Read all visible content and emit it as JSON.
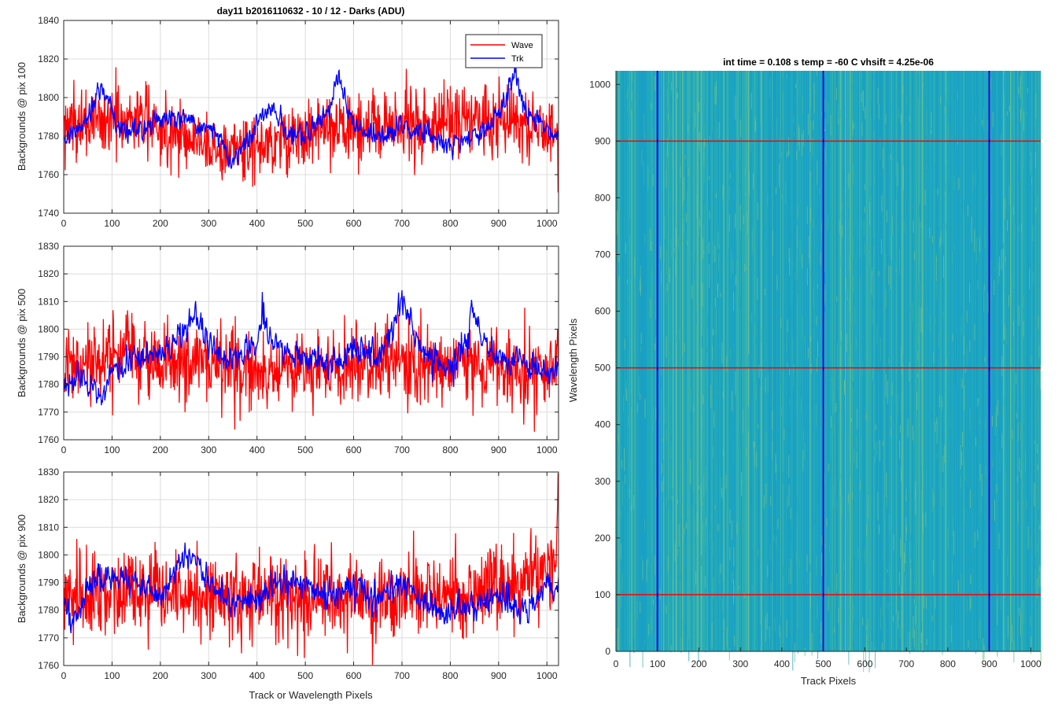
{
  "chart_data": [
    {
      "type": "line",
      "title": "day11 b2016110632 - 10 / 12 - Darks (ADU)",
      "xlabel": "",
      "ylabel": "Backgrounds @ pix 100",
      "xlim": [
        0,
        1024
      ],
      "ylim": [
        1740,
        1840
      ],
      "xticks": [
        0,
        100,
        200,
        300,
        400,
        500,
        600,
        700,
        800,
        900,
        1000
      ],
      "yticks": [
        1740,
        1760,
        1780,
        1800,
        1820,
        1840
      ],
      "grid": true,
      "legend": "top-right",
      "x_range": [
        1,
        1024
      ],
      "series": [
        {
          "name": "Wave",
          "color": "#ff0000",
          "mean": 1785,
          "noise": 9,
          "anchors": [
            [
              1,
              1785
            ],
            [
              150,
              1790
            ],
            [
              330,
              1772
            ],
            [
              520,
              1782
            ],
            [
              700,
              1786
            ],
            [
              920,
              1790
            ],
            [
              1024,
              1780
            ]
          ]
        },
        {
          "name": "Trk",
          "color": "#0000ff",
          "mean": 1783,
          "noise": 4,
          "anchors": [
            [
              1,
              1778
            ],
            [
              25,
              1782
            ],
            [
              55,
              1790
            ],
            [
              75,
              1805
            ],
            [
              90,
              1800
            ],
            [
              110,
              1785
            ],
            [
              150,
              1782
            ],
            [
              200,
              1790
            ],
            [
              260,
              1788
            ],
            [
              300,
              1785
            ],
            [
              330,
              1775
            ],
            [
              350,
              1766
            ],
            [
              390,
              1782
            ],
            [
              430,
              1795
            ],
            [
              460,
              1783
            ],
            [
              500,
              1780
            ],
            [
              550,
              1795
            ],
            [
              565,
              1812
            ],
            [
              575,
              1805
            ],
            [
              600,
              1785
            ],
            [
              650,
              1778
            ],
            [
              700,
              1785
            ],
            [
              750,
              1782
            ],
            [
              800,
              1775
            ],
            [
              850,
              1780
            ],
            [
              900,
              1790
            ],
            [
              925,
              1808
            ],
            [
              935,
              1815
            ],
            [
              950,
              1795
            ],
            [
              1000,
              1782
            ],
            [
              1024,
              1780
            ]
          ]
        }
      ]
    },
    {
      "type": "line",
      "title": "",
      "xlabel": "",
      "ylabel": "Backgrounds @ pix 500",
      "xlim": [
        0,
        1024
      ],
      "ylim": [
        1760,
        1830
      ],
      "xticks": [
        0,
        100,
        200,
        300,
        400,
        500,
        600,
        700,
        800,
        900,
        1000
      ],
      "yticks": [
        1760,
        1770,
        1780,
        1790,
        1800,
        1810,
        1820,
        1830
      ],
      "grid": true,
      "x_range": [
        1,
        1024
      ],
      "series": [
        {
          "name": "Wave",
          "color": "#ff0000",
          "mean": 1787,
          "noise": 7,
          "anchors": [
            [
              1,
              1785
            ],
            [
              150,
              1790
            ],
            [
              300,
              1786
            ],
            [
              500,
              1786
            ],
            [
              700,
              1788
            ],
            [
              900,
              1785
            ],
            [
              1024,
              1785
            ]
          ]
        },
        {
          "name": "Trk",
          "color": "#0000ff",
          "mean": 1788,
          "noise": 3.5,
          "anchors": [
            [
              1,
              1782
            ],
            [
              40,
              1782
            ],
            [
              75,
              1775
            ],
            [
              100,
              1785
            ],
            [
              150,
              1790
            ],
            [
              200,
              1790
            ],
            [
              250,
              1800
            ],
            [
              270,
              1805
            ],
            [
              300,
              1795
            ],
            [
              350,
              1788
            ],
            [
              400,
              1795
            ],
            [
              410,
              1807
            ],
            [
              430,
              1795
            ],
            [
              480,
              1790
            ],
            [
              550,
              1788
            ],
            [
              600,
              1792
            ],
            [
              650,
              1790
            ],
            [
              680,
              1800
            ],
            [
              700,
              1812
            ],
            [
              720,
              1800
            ],
            [
              750,
              1790
            ],
            [
              800,
              1785
            ],
            [
              835,
              1795
            ],
            [
              845,
              1810
            ],
            [
              870,
              1795
            ],
            [
              900,
              1790
            ],
            [
              950,
              1788
            ],
            [
              1000,
              1785
            ],
            [
              1024,
              1785
            ]
          ]
        }
      ]
    },
    {
      "type": "line",
      "title": "",
      "xlabel": "Track or Wavelength Pixels",
      "ylabel": "Backgrounds @ pix 900",
      "xlim": [
        0,
        1024
      ],
      "ylim": [
        1760,
        1830
      ],
      "xticks": [
        0,
        100,
        200,
        300,
        400,
        500,
        600,
        700,
        800,
        900,
        1000
      ],
      "yticks": [
        1760,
        1770,
        1780,
        1790,
        1800,
        1810,
        1820,
        1830
      ],
      "grid": true,
      "x_range": [
        1,
        1024
      ],
      "series": [
        {
          "name": "Wave",
          "color": "#ff0000",
          "mean": 1786,
          "noise": 8,
          "anchors": [
            [
              1,
              1786
            ],
            [
              300,
              1785
            ],
            [
              600,
              1784
            ],
            [
              900,
              1786
            ],
            [
              990,
              1795
            ],
            [
              1020,
              1800
            ],
            [
              1024,
              1824
            ]
          ]
        },
        {
          "name": "Trk",
          "color": "#0000ff",
          "mean": 1786,
          "noise": 3.5,
          "anchors": [
            [
              1,
              1782
            ],
            [
              20,
              1775
            ],
            [
              60,
              1790
            ],
            [
              100,
              1792
            ],
            [
              150,
              1790
            ],
            [
              200,
              1785
            ],
            [
              250,
              1800
            ],
            [
              270,
              1800
            ],
            [
              300,
              1790
            ],
            [
              350,
              1782
            ],
            [
              400,
              1785
            ],
            [
              450,
              1790
            ],
            [
              500,
              1790
            ],
            [
              550,
              1785
            ],
            [
              600,
              1788
            ],
            [
              650,
              1785
            ],
            [
              700,
              1790
            ],
            [
              750,
              1782
            ],
            [
              800,
              1780
            ],
            [
              850,
              1782
            ],
            [
              900,
              1785
            ],
            [
              950,
              1780
            ],
            [
              1000,
              1790
            ],
            [
              1024,
              1790
            ]
          ]
        }
      ]
    },
    {
      "type": "heatmap",
      "title": "int time = 0.108 s   temp = -60 C   vhsift = 4.25e-06",
      "xlabel": "Track Pixels",
      "ylabel": "Wavelength Pixels",
      "xlim": [
        0,
        1024
      ],
      "ylim": [
        0,
        1024
      ],
      "xticks": [
        0,
        100,
        200,
        300,
        400,
        500,
        600,
        700,
        800,
        900,
        1000
      ],
      "yticks": [
        0,
        100,
        200,
        300,
        400,
        500,
        600,
        700,
        800,
        900,
        1000
      ],
      "colormap": [
        "#1aa0c4",
        "#22aabb",
        "#3cb4a8",
        "#6bc28f"
      ],
      "vertical_lines": {
        "color": "#0000ff",
        "x": [
          100,
          500,
          900
        ]
      },
      "horizontal_lines": {
        "color": "#ff0000",
        "y": [
          100,
          500,
          900
        ]
      }
    }
  ]
}
